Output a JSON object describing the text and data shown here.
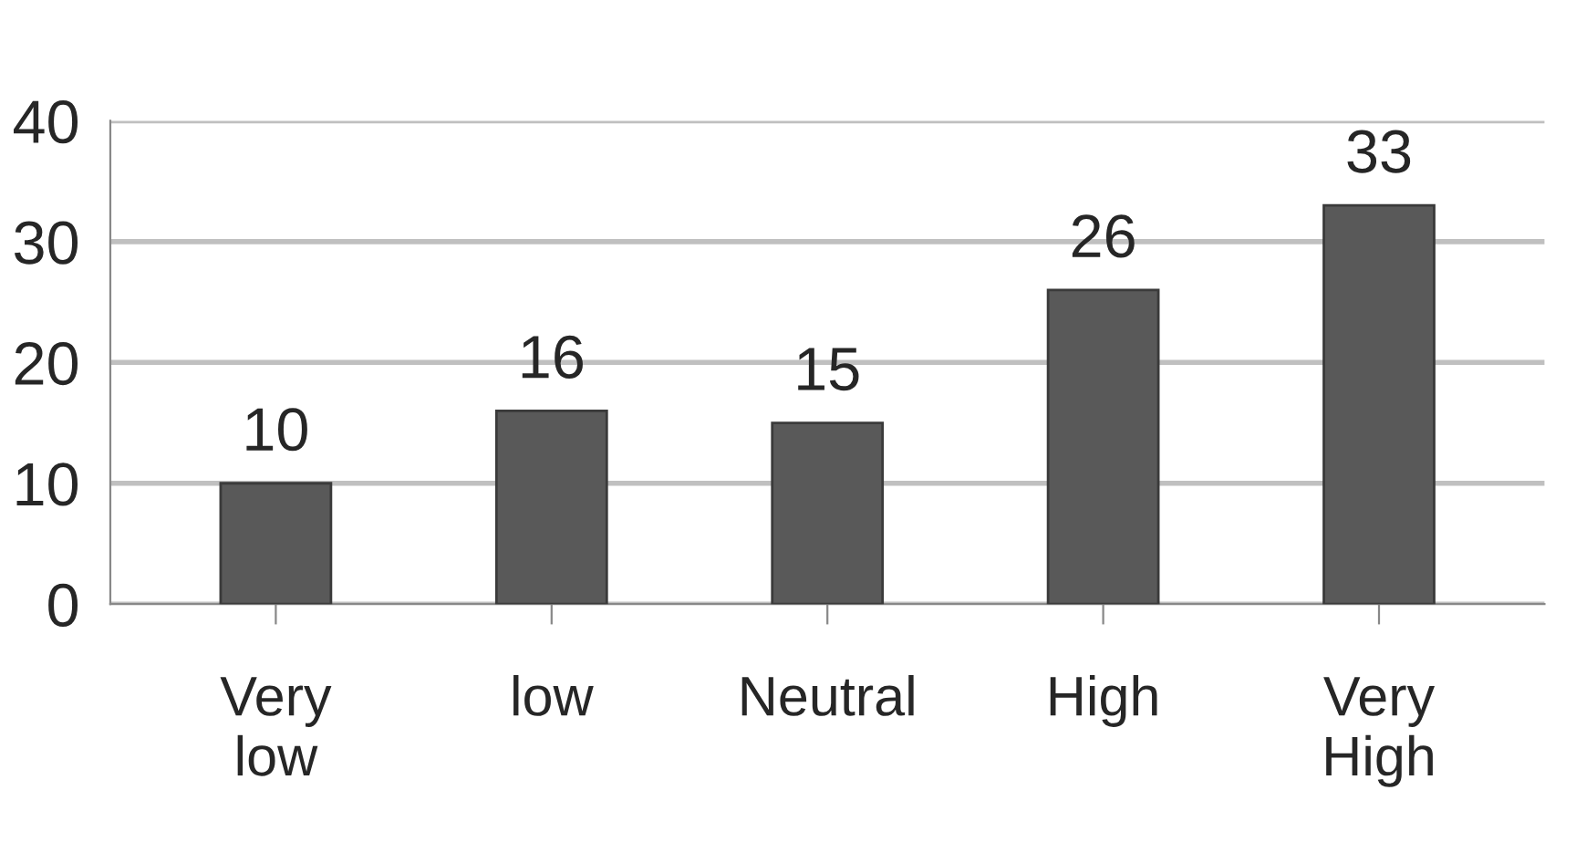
{
  "chart_data": {
    "type": "bar",
    "categories": [
      "Very\nlow",
      "low",
      "Neutral",
      "High",
      "Very\nHigh"
    ],
    "values": [
      10,
      16,
      15,
      26,
      33
    ],
    "color": "#595959",
    "ylim": [
      0,
      40
    ],
    "yticks": [
      0,
      10,
      20,
      30,
      40
    ],
    "grid": "y",
    "data_labels": true
  }
}
